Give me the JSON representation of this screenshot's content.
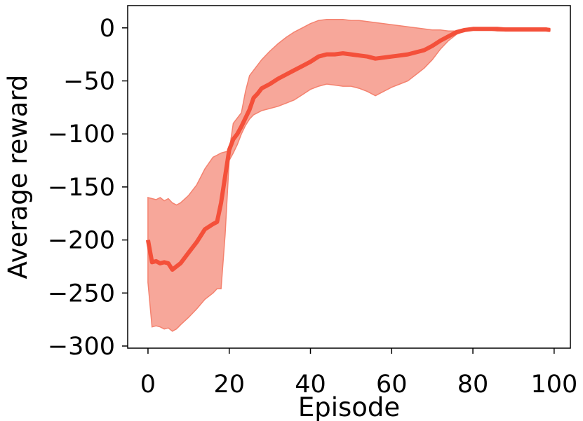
{
  "chart_data": {
    "type": "line",
    "title": "",
    "xlabel": "Episode",
    "ylabel": "Average reward",
    "xlim": [
      -5,
      104
    ],
    "ylim": [
      -302,
      21
    ],
    "xticks": [
      0,
      20,
      40,
      60,
      80,
      100
    ],
    "yticks": [
      0,
      -50,
      -100,
      -150,
      -200,
      -250,
      -300
    ],
    "xtick_labels": [
      "0",
      "20",
      "40",
      "60",
      "80",
      "100"
    ],
    "ytick_labels": [
      "0",
      "−50",
      "−100",
      "−150",
      "−200",
      "−250",
      "−300"
    ],
    "grid": false,
    "legend": "none",
    "colors": {
      "line": "#f4503a",
      "band": "#f4826f"
    },
    "series": [
      {
        "x": [
          0,
          1,
          2,
          3,
          4,
          5,
          6,
          7,
          8,
          10,
          12,
          14,
          16,
          17,
          18,
          19,
          20,
          21,
          22,
          23,
          24,
          25,
          26,
          27,
          28,
          30,
          32,
          34,
          36,
          38,
          40,
          42,
          44,
          46,
          48,
          50,
          52,
          54,
          56,
          58,
          60,
          62,
          64,
          66,
          68,
          70,
          72,
          74,
          76,
          78,
          80,
          82,
          84,
          86,
          88,
          90,
          92,
          94,
          96,
          98,
          99
        ],
        "y": [
          -200,
          -221,
          -220,
          -222,
          -221,
          -222,
          -228,
          -225,
          -222,
          -212,
          -202,
          -190,
          -185,
          -183,
          -165,
          -140,
          -115,
          -105,
          -100,
          -93,
          -85,
          -77,
          -66,
          -62,
          -57,
          -53,
          -48,
          -44,
          -40,
          -36,
          -32,
          -27,
          -25,
          -25,
          -24,
          -25,
          -26,
          -27,
          -29,
          -28,
          -27,
          -26,
          -25,
          -23,
          -21,
          -17,
          -12,
          -8,
          -4,
          -2,
          -1,
          -1,
          -1,
          -1,
          -1.5,
          -1.5,
          -1.5,
          -1.5,
          -1.5,
          -1.5,
          -2
        ],
        "lower": [
          -240,
          -282,
          -281,
          -282,
          -284,
          -283,
          -286,
          -284,
          -280,
          -273,
          -265,
          -256,
          -250,
          -246,
          -246,
          -195,
          -125,
          -118,
          -110,
          -100,
          -92,
          -86,
          -82,
          -80,
          -78,
          -76,
          -74,
          -71,
          -68,
          -63,
          -58,
          -55,
          -53,
          -54,
          -55,
          -55,
          -57,
          -60,
          -64,
          -60,
          -56,
          -53,
          -50,
          -44,
          -38,
          -30,
          -20,
          -12,
          -6,
          -3,
          -2,
          -2,
          -2,
          -3,
          -3,
          -3,
          -3,
          -3,
          -3,
          -3,
          -3
        ],
        "upper": [
          -160,
          -161,
          -162,
          -160,
          -163,
          -161,
          -165,
          -167,
          -165,
          -158,
          -148,
          -133,
          -122,
          -120,
          -118,
          -117,
          -116,
          -90,
          -85,
          -80,
          -60,
          -45,
          -40,
          -35,
          -30,
          -22,
          -15,
          -9,
          -4,
          0,
          4,
          7,
          8,
          8,
          8,
          7,
          7,
          6,
          5,
          4,
          3,
          2,
          1,
          0,
          -1,
          -2,
          -2,
          -3,
          -3,
          -2,
          0,
          0,
          0,
          0,
          0,
          0,
          0,
          0,
          0,
          0,
          -1
        ]
      }
    ]
  }
}
